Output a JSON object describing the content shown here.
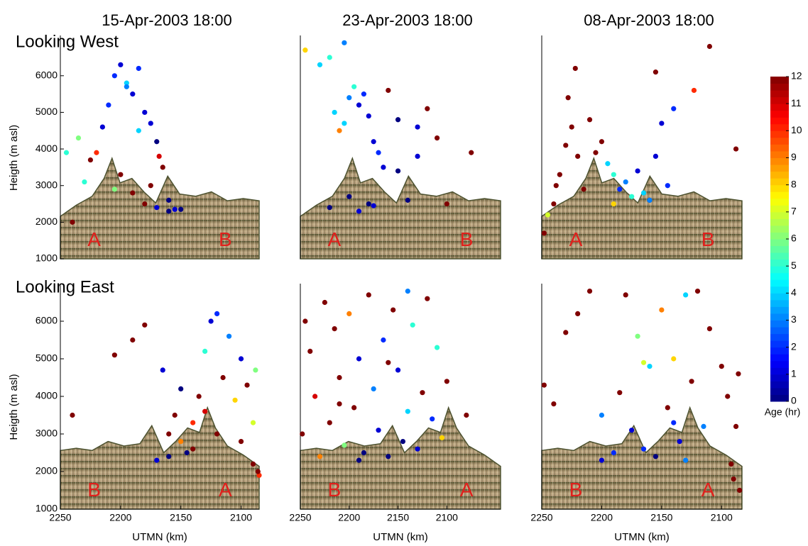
{
  "chart_data": [
    {
      "type": "scatter",
      "title": "15-Apr-2003 18:00",
      "ylabel": "Heigth (m asl)",
      "annotations": [
        "A",
        "B"
      ],
      "xlim": [
        2250,
        2085
      ],
      "ylim": [
        1000,
        7100
      ],
      "yticks": [
        1000,
        2000,
        3000,
        4000,
        5000,
        6000
      ],
      "x": [
        2245,
        2235,
        2225,
        2215,
        2210,
        2205,
        2200,
        2195,
        2190,
        2185,
        2180,
        2175,
        2170,
        2165,
        2160,
        2200,
        2190,
        2180,
        2170,
        2160,
        2155,
        2150,
        2240,
        2230,
        2220,
        2185,
        2175,
        2168,
        2195,
        2205
      ],
      "y": [
        3900,
        4300,
        3700,
        4600,
        5200,
        6000,
        6300,
        5800,
        5500,
        6200,
        5000,
        4700,
        4200,
        3500,
        2600,
        3300,
        2800,
        2500,
        2400,
        2300,
        2350,
        2350,
        2000,
        3100,
        3900,
        4500,
        3000,
        3800,
        5700,
        2900
      ],
      "values": [
        5,
        6,
        12,
        1,
        2,
        2,
        1,
        4,
        1,
        2,
        1,
        1,
        0,
        12,
        0,
        12,
        12,
        12,
        1,
        0,
        1,
        0,
        12,
        5,
        10,
        4,
        12,
        11,
        3,
        6
      ]
    },
    {
      "type": "scatter",
      "title": "23-Apr-2003 18:00",
      "annotations": [
        "A",
        "B"
      ],
      "xlim": [
        2250,
        2045
      ],
      "ylim": [
        1000,
        7100
      ],
      "x": [
        2245,
        2230,
        2220,
        2215,
        2210,
        2205,
        2200,
        2195,
        2190,
        2185,
        2180,
        2175,
        2170,
        2165,
        2160,
        2150,
        2140,
        2130,
        2120,
        2110,
        2100,
        2220,
        2200,
        2190,
        2180,
        2175,
        2150,
        2130,
        2075,
        2205
      ],
      "y": [
        6700,
        6300,
        6500,
        5000,
        4500,
        4700,
        5400,
        5700,
        5200,
        5500,
        4900,
        4200,
        3900,
        3500,
        5600,
        4800,
        2600,
        3800,
        5100,
        4300,
        2500,
        2400,
        2700,
        2300,
        2500,
        2450,
        3400,
        4600,
        3900,
        6900
      ],
      "values": [
        8,
        4,
        5,
        4,
        9,
        4,
        3,
        5,
        1,
        2,
        1,
        1,
        2,
        1,
        12,
        0,
        0,
        1,
        12,
        12,
        12,
        0,
        0,
        1,
        0,
        1,
        0,
        1,
        12,
        3
      ]
    },
    {
      "type": "scatter",
      "title": "08-Apr-2003 18:00",
      "annotations": [
        "A",
        "B"
      ],
      "xlim": [
        2250,
        2083
      ],
      "ylim": [
        1000,
        7100
      ],
      "x": [
        2248,
        2240,
        2235,
        2230,
        2225,
        2220,
        2215,
        2245,
        2238,
        2228,
        2210,
        2200,
        2195,
        2190,
        2185,
        2180,
        2170,
        2165,
        2160,
        2155,
        2150,
        2145,
        2190,
        2175,
        2160,
        2222,
        2155,
        2140,
        2110,
        2088,
        2123,
        2205
      ],
      "y": [
        1700,
        2500,
        3300,
        4100,
        4600,
        3800,
        2900,
        2200,
        3000,
        5400,
        4800,
        4200,
        3600,
        3300,
        2900,
        3100,
        3400,
        2800,
        2600,
        3800,
        4700,
        3000,
        2500,
        2700,
        2600,
        6200,
        6100,
        5100,
        6800,
        4000,
        5600,
        3900
      ],
      "values": [
        12,
        12,
        12,
        12,
        12,
        12,
        12,
        7,
        12,
        12,
        12,
        12,
        4,
        5,
        2,
        3,
        1,
        4,
        0,
        1,
        1,
        2,
        8,
        5,
        3,
        12,
        12,
        2,
        12,
        12,
        10,
        12
      ]
    },
    {
      "type": "scatter",
      "ylabel": "Heigth (m asl)",
      "xlabel": "UTMN (km)",
      "annotations": [
        "B",
        "A"
      ],
      "xlim": [
        2250,
        2085
      ],
      "ylim": [
        1000,
        7000
      ],
      "yticks": [
        1000,
        2000,
        3000,
        4000,
        5000,
        6000
      ],
      "xticks": [
        2250,
        2200,
        2150,
        2100
      ],
      "x": [
        2240,
        2205,
        2190,
        2180,
        2165,
        2160,
        2155,
        2150,
        2145,
        2140,
        2135,
        2130,
        2125,
        2120,
        2115,
        2110,
        2105,
        2100,
        2095,
        2090,
        2085,
        2088,
        2160,
        2140,
        2130,
        2120,
        2100,
        2090,
        2086,
        2150,
        2170
      ],
      "y": [
        3500,
        5100,
        5500,
        5900,
        4700,
        3000,
        3500,
        2800,
        2500,
        3300,
        4000,
        5200,
        6000,
        6200,
        4500,
        5600,
        3900,
        2800,
        4300,
        2200,
        1900,
        4700,
        2400,
        2600,
        3600,
        3000,
        5000,
        3300,
        2000,
        4200,
        2300
      ],
      "values": [
        12,
        12,
        12,
        12,
        1,
        12,
        12,
        9,
        0,
        10,
        12,
        5,
        1,
        2,
        12,
        3,
        8,
        12,
        12,
        12,
        10,
        6,
        0,
        12,
        11,
        12,
        1,
        7,
        12,
        0,
        1
      ]
    },
    {
      "type": "scatter",
      "xlabel": "UTMN (km)",
      "annotations": [
        "B",
        "A"
      ],
      "xlim": [
        2250,
        2045
      ],
      "ylim": [
        1000,
        7000
      ],
      "xticks": [
        2250,
        2200,
        2150,
        2100
      ],
      "x": [
        2248,
        2240,
        2235,
        2225,
        2220,
        2215,
        2210,
        2205,
        2200,
        2195,
        2190,
        2185,
        2180,
        2175,
        2170,
        2165,
        2160,
        2155,
        2150,
        2145,
        2140,
        2135,
        2130,
        2125,
        2120,
        2115,
        2110,
        2105,
        2100,
        2080,
        2245,
        2230,
        2210,
        2190,
        2160,
        2140
      ],
      "y": [
        3000,
        5200,
        4000,
        6500,
        3300,
        5800,
        4500,
        2700,
        6200,
        3700,
        5000,
        2500,
        6700,
        4200,
        3100,
        5500,
        2400,
        6300,
        4700,
        2800,
        3600,
        5900,
        2600,
        4100,
        6600,
        3400,
        5300,
        2900,
        4400,
        3500,
        6000,
        2400,
        3800,
        2300,
        4900,
        6800
      ],
      "values": [
        12,
        12,
        11,
        12,
        12,
        12,
        12,
        6,
        9,
        12,
        1,
        0,
        12,
        3,
        1,
        2,
        0,
        12,
        1,
        0,
        4,
        5,
        1,
        12,
        12,
        2,
        5,
        8,
        12,
        12,
        12,
        9,
        12,
        0,
        12,
        3
      ]
    },
    {
      "type": "scatter",
      "xlabel": "UTMN (km)",
      "annotations": [
        "B",
        "A"
      ],
      "xlim": [
        2250,
        2083
      ],
      "ylim": [
        1000,
        7000
      ],
      "xticks": [
        2250,
        2200,
        2150,
        2100
      ],
      "x": [
        2248,
        2240,
        2230,
        2220,
        2210,
        2200,
        2190,
        2185,
        2180,
        2175,
        2170,
        2165,
        2160,
        2155,
        2150,
        2145,
        2140,
        2135,
        2130,
        2125,
        2120,
        2115,
        2110,
        2100,
        2095,
        2090,
        2088,
        2092,
        2086,
        2085,
        2165,
        2140,
        2130,
        2200
      ],
      "y": [
        4300,
        3800,
        5700,
        6200,
        6800,
        3500,
        2500,
        4100,
        6700,
        3100,
        5600,
        2600,
        4800,
        2400,
        6300,
        3700,
        5000,
        2800,
        6700,
        4400,
        6800,
        3200,
        5800,
        4800,
        4000,
        1800,
        3200,
        2200,
        4600,
        1500,
        4900,
        3300,
        2300,
        2300
      ],
      "values": [
        12,
        12,
        12,
        12,
        12,
        3,
        2,
        12,
        12,
        1,
        6,
        2,
        4,
        0,
        9,
        12,
        8,
        1,
        4,
        12,
        12,
        3,
        12,
        12,
        12,
        12,
        12,
        12,
        12,
        12,
        7,
        2,
        3,
        1
      ]
    }
  ],
  "row_labels": [
    "Looking West",
    "Looking East"
  ],
  "colorbar": {
    "label": "Age (hr)",
    "colormap": "jet",
    "lim": [
      0,
      12
    ],
    "ticks": [
      0,
      1,
      2,
      3,
      4,
      5,
      6,
      7,
      8,
      9,
      10,
      11,
      12
    ]
  }
}
